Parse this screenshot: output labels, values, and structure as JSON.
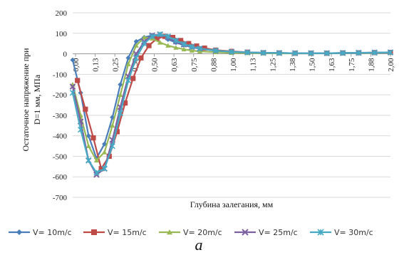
{
  "chart_data": {
    "type": "line",
    "title": "",
    "xlabel": "Глубина залегания, мм",
    "ylabel": "Остаточное напряжение при D=1 мм, МПа",
    "ylabel_lines": [
      "Остаточное напряжение при",
      "D=1 мм, МПа"
    ],
    "ylim": [
      -700,
      200
    ],
    "yticks": [
      200,
      100,
      0,
      -100,
      -200,
      -300,
      -400,
      -500,
      -600,
      -700
    ],
    "xlim": [
      0,
      2.0
    ],
    "xtick_labels": [
      "0,00",
      "0,13",
      "0,25",
      "0,38",
      "0,50",
      "0,63",
      "0,75",
      "0,88",
      "1,00",
      "1,13",
      "1,25",
      "1,38",
      "1,50",
      "1,63",
      "1,75",
      "1,88",
      "2,00"
    ],
    "grid": "horizontal",
    "legend_position": "bottom",
    "caption": "а",
    "series": [
      {
        "name": "V= 10m/c",
        "color": "#4a7ebb",
        "marker": "diamond",
        "x": [
          0,
          0.05,
          0.1,
          0.15,
          0.2,
          0.25,
          0.3,
          0.35,
          0.4,
          0.45,
          0.5,
          0.55,
          0.6,
          0.65,
          0.7,
          0.75,
          0.8,
          0.9,
          1.0,
          1.1,
          1.2,
          1.3,
          1.4,
          1.5,
          1.6,
          1.7,
          1.8,
          1.9,
          2.0
        ],
        "y": [
          -30,
          -190,
          -400,
          -510,
          -440,
          -310,
          -150,
          -20,
          60,
          80,
          90,
          85,
          70,
          55,
          42,
          32,
          25,
          15,
          10,
          6,
          4,
          3,
          2,
          2,
          2,
          3,
          4,
          5,
          6
        ]
      },
      {
        "name": "V= 15m/c",
        "color": "#be4b48",
        "marker": "square",
        "x": [
          0.03,
          0.08,
          0.13,
          0.18,
          0.23,
          0.28,
          0.33,
          0.38,
          0.43,
          0.48,
          0.53,
          0.58,
          0.63,
          0.68,
          0.73,
          0.78,
          0.83,
          0.9,
          1.0,
          1.1,
          1.2,
          1.3,
          1.4,
          1.5,
          1.6,
          1.7,
          1.8,
          1.9,
          2.0
        ],
        "y": [
          -130,
          -270,
          -410,
          -560,
          -500,
          -380,
          -240,
          -120,
          -20,
          40,
          75,
          85,
          80,
          65,
          50,
          38,
          28,
          18,
          12,
          8,
          5,
          4,
          3,
          3,
          3,
          4,
          5,
          6,
          7
        ]
      },
      {
        "name": "V= 20m/c",
        "color": "#98b954",
        "marker": "triangle",
        "x": [
          0,
          0.05,
          0.1,
          0.15,
          0.2,
          0.25,
          0.3,
          0.35,
          0.4,
          0.45,
          0.5,
          0.55,
          0.6,
          0.65,
          0.7,
          0.75,
          0.8,
          0.9,
          1.0,
          1.1,
          1.2,
          1.3,
          1.4,
          1.5,
          1.6,
          1.7,
          1.8,
          1.9,
          2.0
        ],
        "y": [
          -150,
          -300,
          -450,
          -520,
          -480,
          -350,
          -200,
          -50,
          40,
          80,
          75,
          55,
          40,
          30,
          22,
          16,
          12,
          8,
          5,
          4,
          3,
          2,
          2,
          2,
          3,
          3,
          4,
          5,
          6
        ]
      },
      {
        "name": "V= 25m/c",
        "color": "#7d60a0",
        "marker": "x",
        "x": [
          0,
          0.05,
          0.1,
          0.15,
          0.2,
          0.25,
          0.3,
          0.35,
          0.4,
          0.45,
          0.5,
          0.55,
          0.6,
          0.65,
          0.7,
          0.75,
          0.8,
          0.9,
          1.0,
          1.1,
          1.2,
          1.3,
          1.4,
          1.5,
          1.6,
          1.7,
          1.8,
          1.9,
          2.0
        ],
        "y": [
          -160,
          -330,
          -520,
          -590,
          -560,
          -420,
          -260,
          -110,
          0,
          60,
          90,
          95,
          80,
          60,
          45,
          33,
          25,
          15,
          10,
          7,
          5,
          4,
          3,
          3,
          3,
          4,
          5,
          6,
          7
        ]
      },
      {
        "name": "V= 30m/c",
        "color": "#46aac5",
        "marker": "asterisk",
        "x": [
          0,
          0.05,
          0.1,
          0.15,
          0.2,
          0.25,
          0.3,
          0.35,
          0.4,
          0.45,
          0.5,
          0.55,
          0.6,
          0.65,
          0.7,
          0.75,
          0.8,
          0.9,
          1.0,
          1.1,
          1.2,
          1.3,
          1.4,
          1.5,
          1.6,
          1.7,
          1.8,
          1.9,
          2.0
        ],
        "y": [
          -190,
          -370,
          -520,
          -580,
          -560,
          -450,
          -290,
          -130,
          -20,
          50,
          85,
          95,
          85,
          65,
          48,
          35,
          26,
          16,
          10,
          7,
          5,
          4,
          3,
          3,
          3,
          4,
          5,
          6,
          7
        ]
      }
    ]
  }
}
